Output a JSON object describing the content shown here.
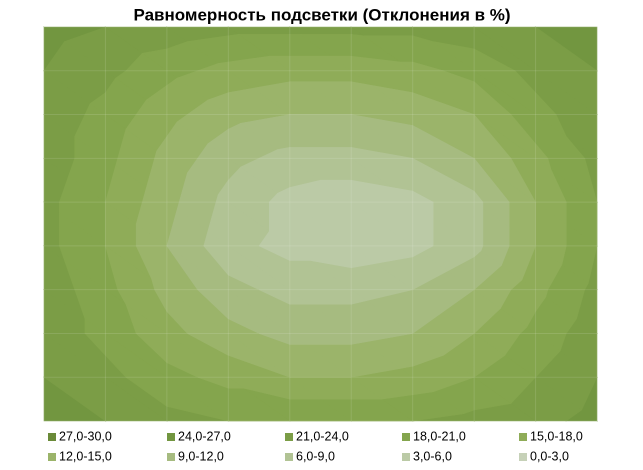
{
  "chart_data": {
    "type": "contour",
    "title": "Равномерность подсветки (Отклонения в %)",
    "bands": [
      {
        "name": "27,0-30,0",
        "color": "#6a8a38",
        "min": 27,
        "max": 30
      },
      {
        "name": "24,0-27,0",
        "color": "#729640",
        "min": 24,
        "max": 27
      },
      {
        "name": "21,0-24,0",
        "color": "#7b9d46",
        "min": 21,
        "max": 24
      },
      {
        "name": "18,0-21,0",
        "color": "#84a54d",
        "min": 18,
        "max": 21
      },
      {
        "name": "15,0-18,0",
        "color": "#8fac58",
        "min": 15,
        "max": 18
      },
      {
        "name": "12,0-15,0",
        "color": "#9bb46a",
        "min": 12,
        "max": 15
      },
      {
        "name": "9,0-12,0",
        "color": "#a6bb80",
        "min": 9,
        "max": 12
      },
      {
        "name": "6,0-9,0",
        "color": "#b1c394",
        "min": 6,
        "max": 9
      },
      {
        "name": "3,0-6,0",
        "color": "#bbcaa6",
        "min": 3,
        "max": 6
      },
      {
        "name": "0,0-3,0",
        "color": "#c6d1b8",
        "min": 0,
        "max": 3
      }
    ],
    "z": [
      [
        25,
        24,
        23,
        22,
        22,
        22,
        22,
        23,
        24,
        25
      ],
      [
        24,
        22,
        19,
        17,
        16,
        16,
        17,
        19,
        22,
        24
      ],
      [
        23,
        20,
        16,
        13,
        12,
        12,
        13,
        15,
        20,
        23
      ],
      [
        23,
        19,
        14,
        10,
        8,
        8,
        9,
        12,
        17,
        22
      ],
      [
        22,
        18,
        13,
        8,
        5,
        4,
        5,
        8,
        15,
        21
      ],
      [
        22,
        18,
        12,
        7,
        5,
        4,
        5,
        8,
        15,
        21
      ],
      [
        23,
        19,
        14,
        10,
        8,
        8,
        9,
        12,
        17,
        22
      ],
      [
        23,
        20,
        16,
        13,
        11,
        11,
        12,
        15,
        19,
        23
      ],
      [
        24,
        22,
        19,
        17,
        15,
        15,
        16,
        18,
        21,
        24
      ],
      [
        25,
        24,
        22,
        21,
        21,
        21,
        21,
        22,
        23,
        25
      ]
    ]
  }
}
